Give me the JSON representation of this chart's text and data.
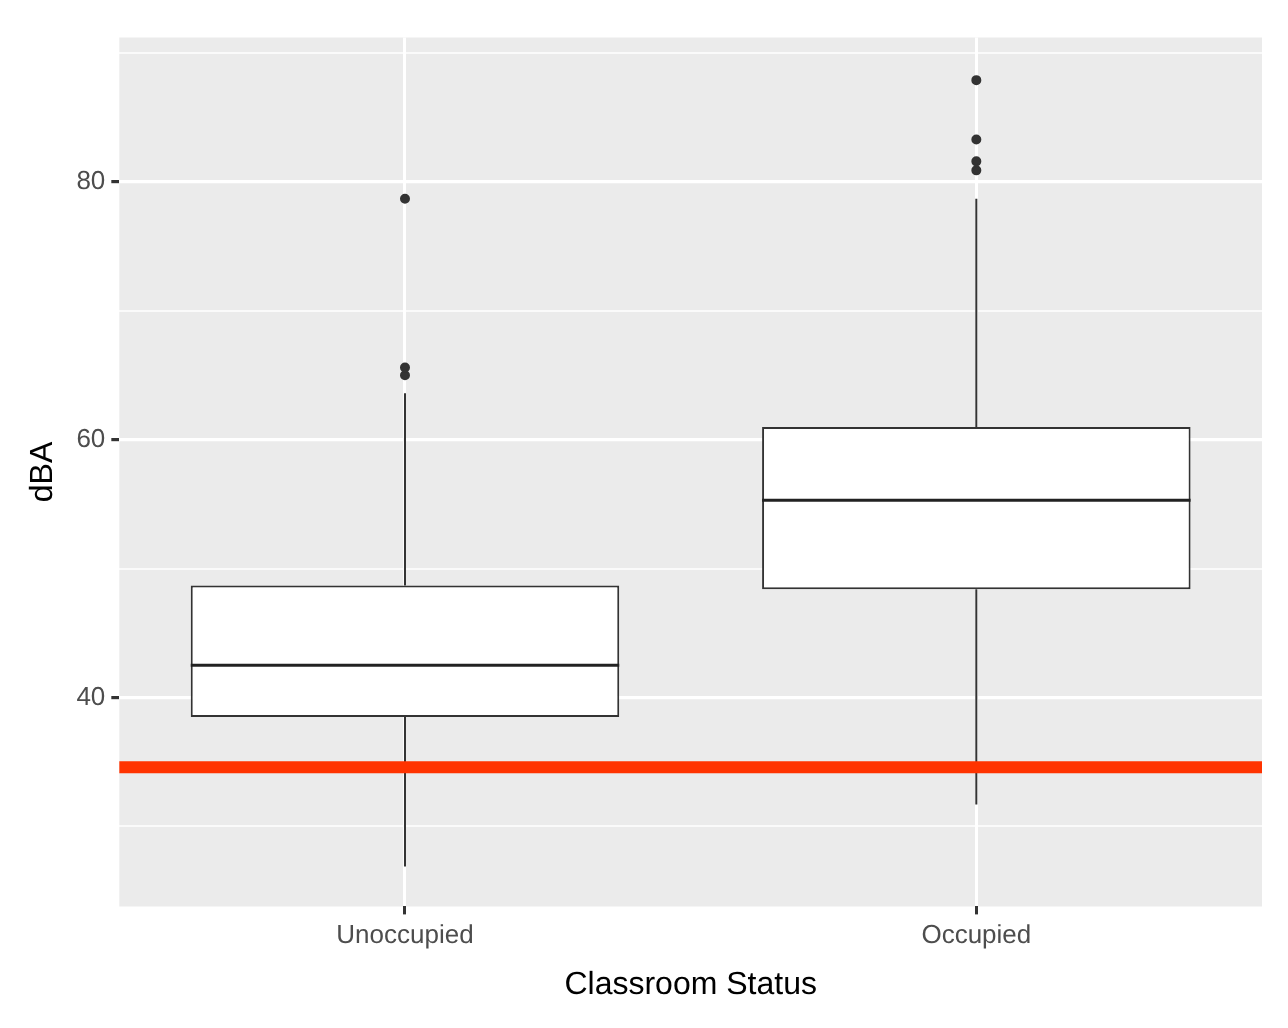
{
  "chart_data": {
    "type": "box",
    "xlabel": "Classroom Status",
    "ylabel": "dBA",
    "categories": [
      "Unoccupied",
      "Occupied"
    ],
    "boxes": [
      {
        "low": 26.9,
        "q1": 38.5,
        "median": 42.5,
        "q3": 48.7,
        "high": 63.6,
        "outliers": [
          65.0,
          65.6,
          78.7
        ]
      },
      {
        "low": 31.7,
        "q1": 48.4,
        "median": 55.3,
        "q3": 61.0,
        "high": 78.7,
        "outliers": [
          80.9,
          81.6,
          83.3,
          87.9
        ]
      }
    ],
    "ylim": [
      23.8,
      91.2
    ],
    "yticks": [
      {
        "value": 30,
        "label": null
      },
      40,
      {
        "value": 50,
        "label": null
      },
      60,
      {
        "value": 70,
        "label": null
      },
      80,
      {
        "value": 90,
        "label": null
      }
    ],
    "grid": true,
    "ref_lines": [
      {
        "axis": "y",
        "value": 34.6,
        "color": "#ff3300"
      }
    ]
  }
}
